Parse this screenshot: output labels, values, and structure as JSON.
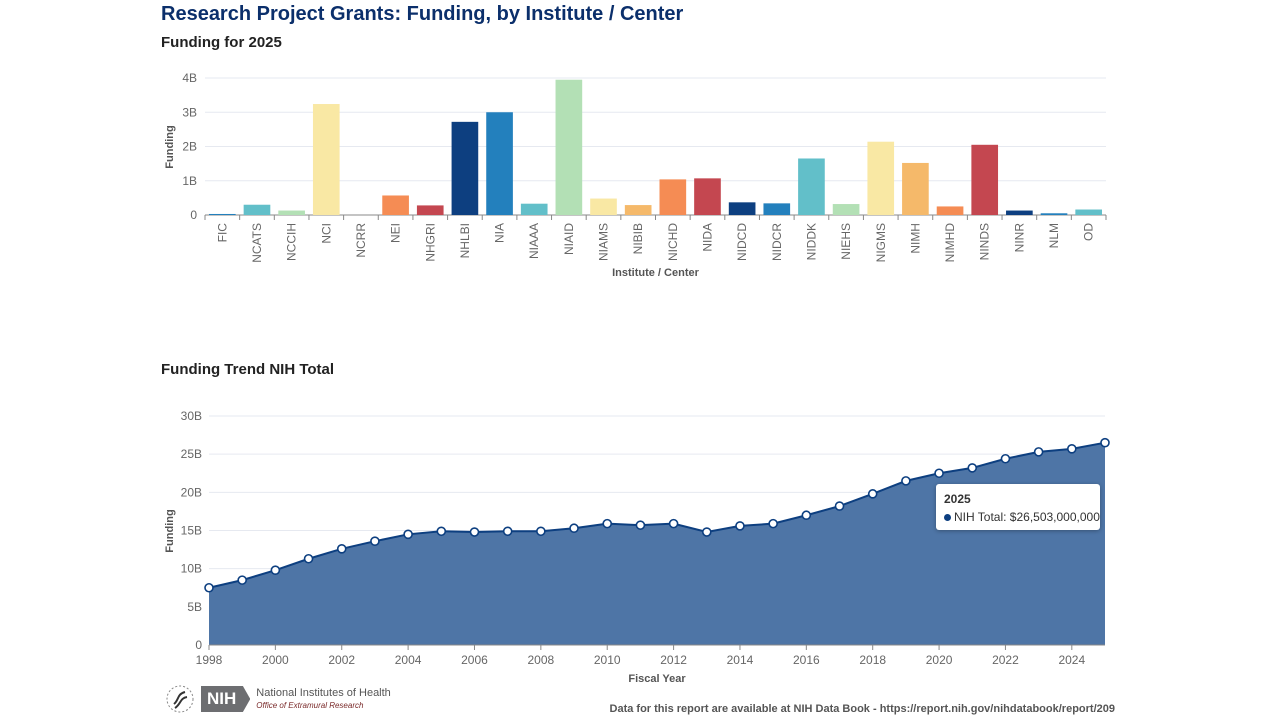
{
  "page": {
    "title": "Research Project Grants: Funding, by Institute / Center",
    "source_note": "Data for this report are available at NIH Data Book - https://report.nih.gov/nihdatabook/report/209",
    "logo": {
      "name": "NIH",
      "line1": "National Institutes of Health",
      "line2": "Office of Extramural Research"
    }
  },
  "tooltip": {
    "year": "2025",
    "label": "NIH Total: $26,503,000,000",
    "color": "#0d3f80"
  },
  "chart_data": [
    {
      "type": "bar",
      "title": "Funding for 2025",
      "xlabel": "Institute / Center",
      "ylabel": "Funding",
      "ylim": [
        0,
        4000000000
      ],
      "yticks": [
        "0",
        "1B",
        "2B",
        "3B",
        "4B"
      ],
      "grid": true,
      "categories": [
        "FIC",
        "NCATS",
        "NCCIH",
        "NCI",
        "NCRR",
        "NEI",
        "NHGRI",
        "NHLBI",
        "NIA",
        "NIAAA",
        "NIAID",
        "NIAMS",
        "NIBIB",
        "NICHD",
        "NIDA",
        "NIDCD",
        "NIDCR",
        "NIDDK",
        "NIEHS",
        "NIGMS",
        "NIMH",
        "NIMHD",
        "NINDS",
        "NINR",
        "NLM",
        "OD"
      ],
      "values": [
        30000000,
        300000000,
        130000000,
        3240000000,
        0,
        570000000,
        280000000,
        2720000000,
        3000000000,
        330000000,
        3950000000,
        480000000,
        290000000,
        1040000000,
        1070000000,
        370000000,
        340000000,
        1650000000,
        320000000,
        2140000000,
        1520000000,
        250000000,
        2050000000,
        130000000,
        50000000,
        160000000
      ],
      "palette": [
        "#2380bd",
        "#62bfc9",
        "#b3e0b5",
        "#f9e8a4",
        "#f5b96a",
        "#f58c54",
        "#c44750",
        "#0d3f80"
      ]
    },
    {
      "type": "area",
      "title": "Funding Trend NIH Total",
      "xlabel": "Fiscal Year",
      "ylabel": "Funding",
      "ylim": [
        0,
        30000000000
      ],
      "xlim": [
        1998,
        2025
      ],
      "yticks": [
        "0",
        "5B",
        "10B",
        "15B",
        "20B",
        "25B",
        "30B"
      ],
      "xticks": [
        "1998",
        "2000",
        "2002",
        "2004",
        "2006",
        "2008",
        "2010",
        "2012",
        "2014",
        "2016",
        "2018",
        "2020",
        "2022",
        "2024"
      ],
      "grid": true,
      "color": "#0d3f80",
      "fill": "#4e75a6",
      "series": [
        {
          "name": "NIH Total",
          "x": [
            1998,
            1999,
            2000,
            2001,
            2002,
            2003,
            2004,
            2005,
            2006,
            2007,
            2008,
            2009,
            2010,
            2011,
            2012,
            2013,
            2014,
            2015,
            2016,
            2017,
            2018,
            2019,
            2020,
            2021,
            2022,
            2023,
            2024,
            2025
          ],
          "values": [
            7.5,
            8.5,
            9.8,
            11.3,
            12.6,
            13.6,
            14.5,
            14.9,
            14.8,
            14.9,
            14.9,
            15.3,
            15.9,
            15.7,
            15.9,
            14.8,
            15.6,
            15.9,
            17.0,
            18.2,
            19.8,
            21.5,
            22.5,
            23.2,
            24.4,
            25.3,
            25.7,
            26.503
          ]
        }
      ],
      "value_unit": "billions"
    }
  ]
}
